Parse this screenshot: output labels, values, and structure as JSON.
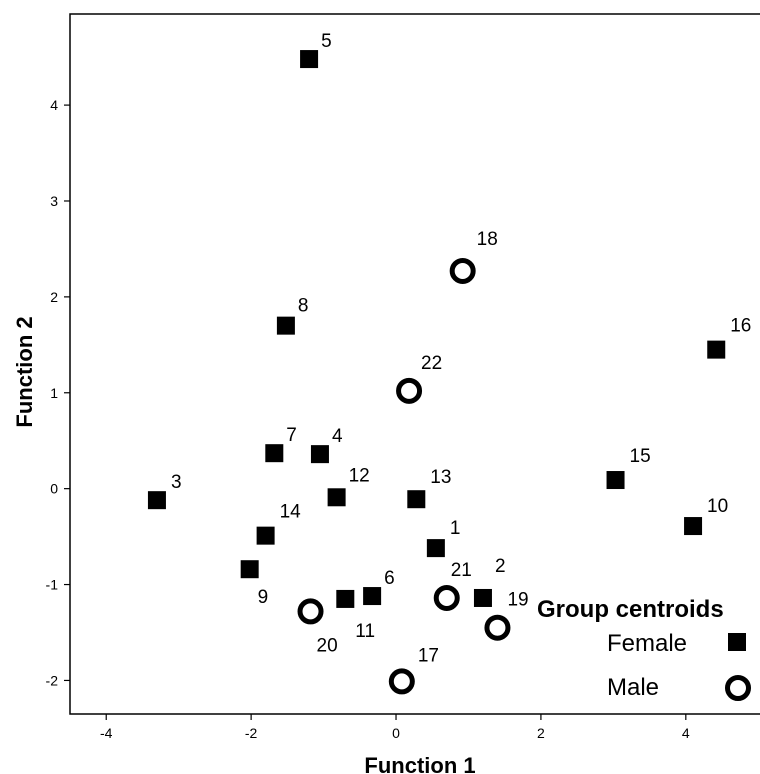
{
  "chart_data": {
    "type": "scatter",
    "xlabel": "Function 1",
    "ylabel": "Function 2",
    "xlim": [
      -4.5,
      5.3
    ],
    "ylim": [
      -2.35,
      4.95
    ],
    "xticks": [
      -4,
      -2,
      0,
      2,
      4
    ],
    "yticks": [
      -2,
      -1,
      0,
      1,
      2,
      3,
      4
    ],
    "xtick_labels": [
      "-4",
      "-2",
      "0",
      "2",
      "4"
    ],
    "ytick_labels": [
      "-2",
      "-1",
      "0",
      "1",
      "2",
      "3",
      "4"
    ],
    "grid": false,
    "legend": {
      "title": "Group centroids",
      "placement": "bottom-right",
      "entries": [
        {
          "label": "Female",
          "marker": "square"
        },
        {
          "label": "Male",
          "marker": "ring"
        }
      ]
    },
    "series": [
      {
        "marker": "square",
        "points": [
          {
            "id": "1",
            "x": 0.55,
            "y": -0.62
          },
          {
            "id": "2",
            "x": 1.2,
            "y": -1.14
          },
          {
            "id": "3",
            "x": -3.3,
            "y": -0.12
          },
          {
            "id": "4",
            "x": -1.05,
            "y": 0.36
          },
          {
            "id": "5",
            "x": -1.2,
            "y": 4.48
          },
          {
            "id": "6",
            "x": -0.33,
            "y": -1.12
          },
          {
            "id": "7",
            "x": -1.68,
            "y": 0.37
          },
          {
            "id": "8",
            "x": -1.52,
            "y": 1.7
          },
          {
            "id": "9",
            "x": -2.02,
            "y": -0.84
          },
          {
            "id": "10",
            "x": 4.1,
            "y": -0.39
          },
          {
            "id": "11",
            "x": -0.7,
            "y": -1.15
          },
          {
            "id": "12",
            "x": -0.82,
            "y": -0.09
          },
          {
            "id": "13",
            "x": 0.28,
            "y": -0.11
          },
          {
            "id": "14",
            "x": -1.8,
            "y": -0.49
          },
          {
            "id": "15",
            "x": 3.03,
            "y": 0.09
          },
          {
            "id": "16",
            "x": 4.42,
            "y": 1.45
          }
        ]
      },
      {
        "marker": "ring",
        "points": [
          {
            "id": "17",
            "x": 0.08,
            "y": -2.01
          },
          {
            "id": "18",
            "x": 0.92,
            "y": 2.27
          },
          {
            "id": "19",
            "x": 1.4,
            "y": -1.45
          },
          {
            "id": "20",
            "x": -1.18,
            "y": -1.28
          },
          {
            "id": "21",
            "x": 0.7,
            "y": -1.14
          },
          {
            "id": "22",
            "x": 0.18,
            "y": 1.02
          }
        ]
      }
    ]
  }
}
